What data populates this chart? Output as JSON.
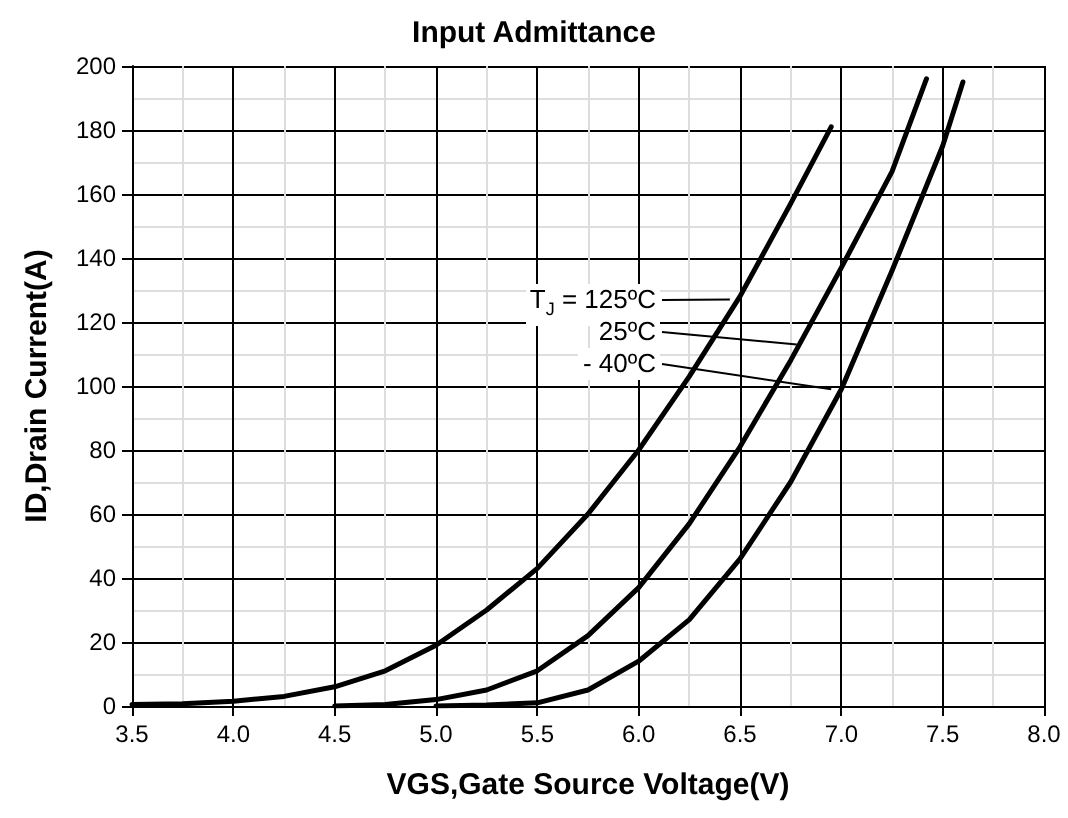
{
  "chart_data": {
    "type": "line",
    "title": "Input Admittance",
    "xlabel": "VGS,Gate Source Voltage(V)",
    "ylabel": "ID,Drain Current(A)",
    "series": [
      {
        "color": "#000000",
        "x": [
          3.5,
          3.75,
          4.0,
          4.25,
          4.5,
          4.75,
          5.0,
          5.25,
          5.5,
          5.75,
          6.0,
          6.25,
          6.5,
          6.75,
          6.95
        ],
        "values": [
          0.5,
          0.7,
          1.5,
          3,
          6,
          11,
          19,
          30,
          43,
          60,
          80,
          103,
          128,
          157,
          181
        ]
      },
      {
        "color": "#000000",
        "x": [
          4.5,
          4.75,
          5.0,
          5.25,
          5.5,
          5.75,
          6.0,
          6.25,
          6.5,
          6.75,
          7.0,
          7.25,
          7.42
        ],
        "values": [
          0,
          0.5,
          2,
          5,
          11,
          22,
          37,
          57,
          81,
          108,
          137,
          167,
          196
        ]
      },
      {
        "color": "#000000",
        "x": [
          5.0,
          5.25,
          5.5,
          5.75,
          6.0,
          6.25,
          6.5,
          6.75,
          7.0,
          7.25,
          7.5,
          7.6
        ],
        "values": [
          0,
          0.3,
          1,
          5,
          14,
          27,
          46,
          70,
          99,
          136,
          175,
          195
        ]
      }
    ],
    "annotations": [
      {
        "text": "T$_{J}$ = 125ºC",
        "x": 6.45,
        "y": 127
      },
      {
        "text": "25ºC",
        "x": 6.78,
        "y": 113
      },
      {
        "text": "- 40ºC",
        "x": 6.95,
        "y": 99
      }
    ],
    "xlim": [
      3.5,
      8.0
    ],
    "xticks": [
      {
        "value": 3.5,
        "label": "3.5"
      },
      {
        "value": 4,
        "label": "4.0"
      },
      {
        "value": 4.5,
        "label": "4.5"
      },
      {
        "value": 5,
        "label": "5.0"
      },
      {
        "value": 5.5,
        "label": "5.5"
      },
      {
        "value": 6,
        "label": "6.0"
      },
      {
        "value": 6.5,
        "label": "6.5"
      },
      {
        "value": 7,
        "label": "7.0"
      },
      {
        "value": 7.5,
        "label": "7.5"
      },
      {
        "value": 8,
        "label": "8.0"
      }
    ],
    "ylim": [
      0,
      200
    ],
    "yticks": [
      0,
      20,
      40,
      60,
      80,
      100,
      120,
      140,
      160,
      180,
      200
    ],
    "grid": true,
    "marker": "none",
    "line_style": "solid"
  }
}
